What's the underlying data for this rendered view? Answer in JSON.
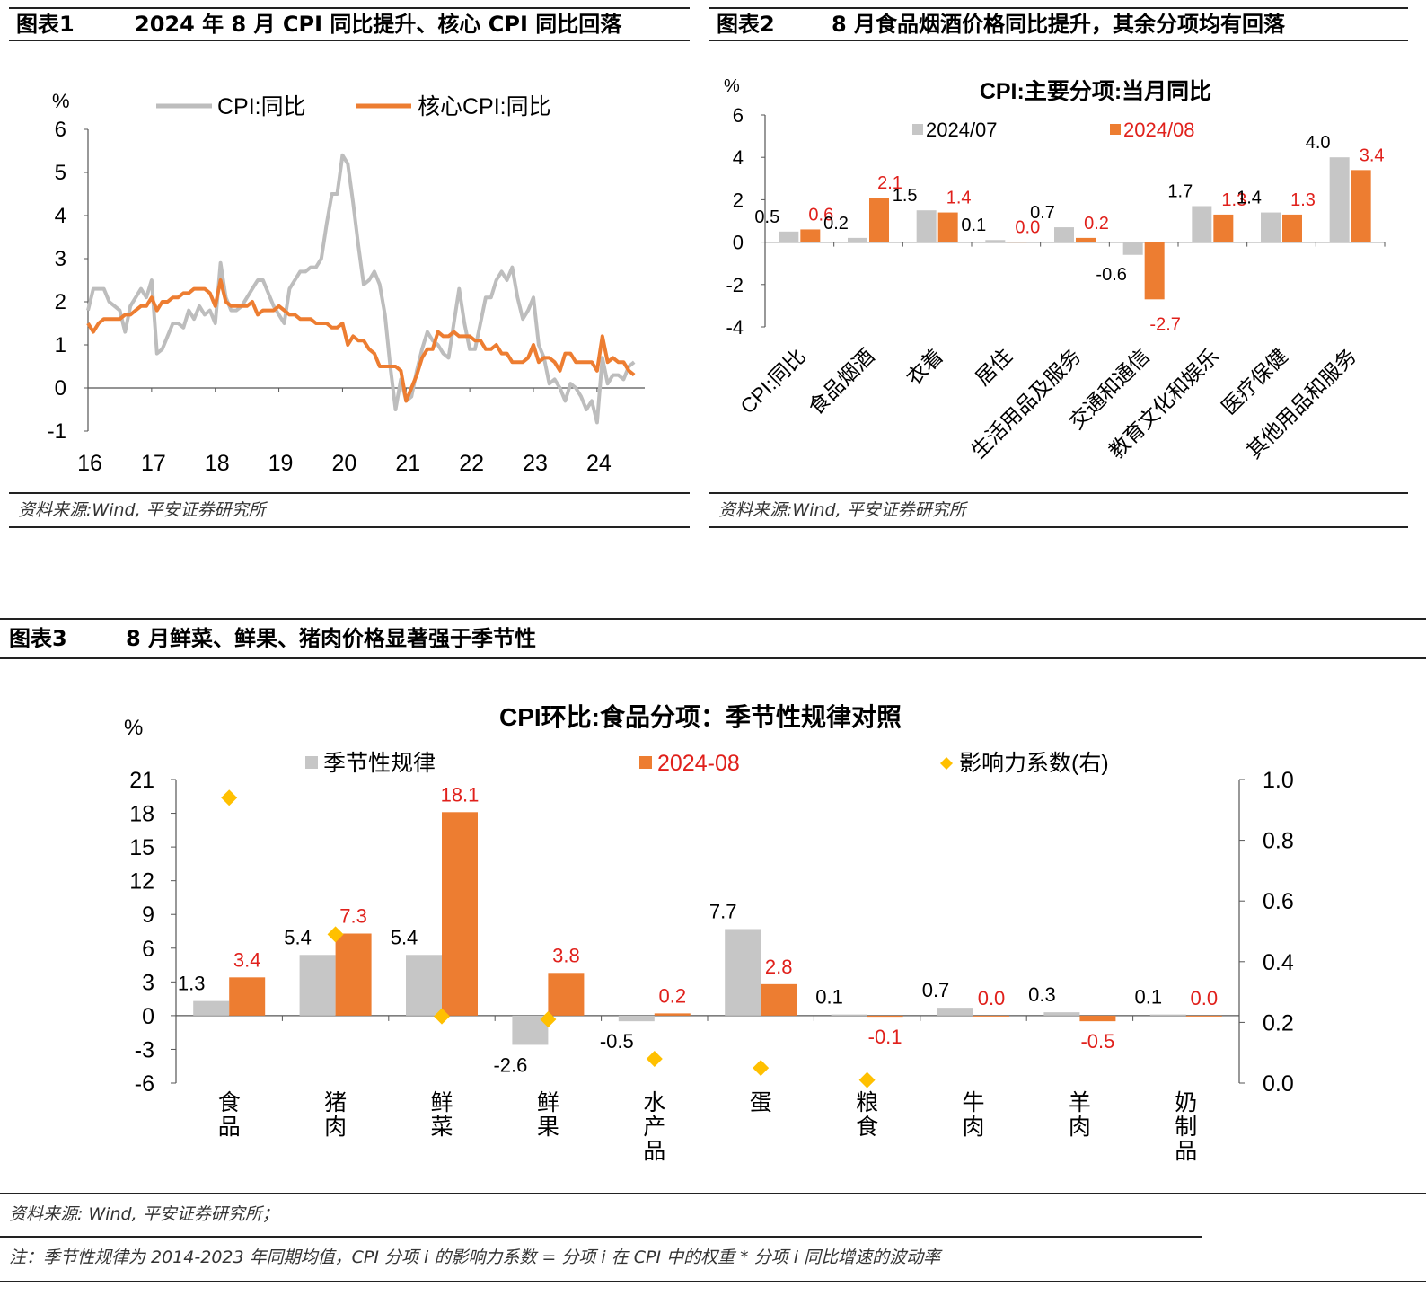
{
  "colors": {
    "grey": "#c6c6c6",
    "orange": "#ed7d31",
    "red": "#e0201b",
    "diamond": "#ffc000",
    "line_grey": "#bdbdbd"
  },
  "panel1": {
    "number": "图表1",
    "title": "2024 年 8 月 CPI 同比提升、核心 CPI 同比回落",
    "source": "资料来源:Wind, 平安证券研究所"
  },
  "panel2": {
    "number": "图表2",
    "title": "8 月食品烟酒价格同比提升，其余分项均有回落",
    "source": "资料来源:Wind, 平安证券研究所"
  },
  "panel3": {
    "number": "图表3",
    "title": "8 月鲜菜、鲜果、猪肉价格显著强于季节性",
    "source": "资料来源: Wind, 平安证券研究所；",
    "note": "注：季节性规律为 2014-2023 年同期均值，CPI 分项 i 的影响力系数 = 分项 i 在 CPI 中的权重 * 分项 i 同比增速的波动率"
  },
  "chart_data": [
    {
      "type": "line",
      "title": "",
      "ylabel": "%",
      "ylim": [
        -1,
        6
      ],
      "yticks": [
        "-1",
        "0",
        "1",
        "2",
        "3",
        "4",
        "5",
        "6"
      ],
      "xticks": [
        "16",
        "17",
        "18",
        "19",
        "20",
        "21",
        "22",
        "23",
        "24"
      ],
      "grid": false,
      "legend": "top",
      "series": [
        {
          "name": "CPI:同比",
          "color": "#bdbdbd",
          "start": "2016-01",
          "values": [
            1.8,
            2.3,
            2.3,
            2.3,
            2.0,
            1.9,
            1.8,
            1.3,
            1.9,
            2.1,
            2.3,
            2.1,
            2.5,
            0.8,
            0.9,
            1.2,
            1.5,
            1.5,
            1.4,
            1.8,
            1.6,
            1.9,
            1.7,
            1.8,
            1.5,
            2.9,
            2.1,
            1.8,
            1.8,
            1.9,
            2.1,
            2.3,
            2.5,
            2.5,
            2.2,
            1.9,
            1.7,
            1.5,
            2.3,
            2.5,
            2.7,
            2.7,
            2.8,
            2.8,
            3.0,
            3.8,
            4.5,
            4.5,
            5.4,
            5.2,
            4.3,
            3.3,
            2.4,
            2.5,
            2.7,
            2.4,
            1.7,
            0.5,
            -0.5,
            0.2,
            -0.3,
            -0.2,
            0.4,
            0.9,
            1.3,
            1.1,
            1.0,
            0.8,
            0.7,
            1.5,
            2.3,
            1.5,
            0.9,
            0.9,
            1.5,
            2.1,
            2.1,
            2.5,
            2.7,
            2.5,
            2.8,
            2.1,
            1.6,
            1.8,
            2.1,
            1.0,
            0.7,
            0.1,
            0.2,
            0.0,
            -0.3,
            0.1,
            0.0,
            -0.2,
            -0.5,
            -0.3,
            -0.8,
            0.7,
            0.1,
            0.3,
            0.3,
            0.2,
            0.5,
            0.6
          ]
        },
        {
          "name": "核心CPI:同比",
          "color": "#ed7d31",
          "start": "2016-01",
          "values": [
            1.5,
            1.3,
            1.5,
            1.6,
            1.6,
            1.6,
            1.6,
            1.7,
            1.7,
            1.8,
            1.9,
            1.9,
            2.1,
            1.8,
            2.0,
            2.0,
            2.1,
            2.1,
            2.2,
            2.2,
            2.3,
            2.3,
            2.3,
            2.2,
            1.9,
            2.5,
            2.0,
            1.9,
            1.9,
            1.9,
            1.9,
            2.0,
            1.7,
            1.8,
            1.8,
            1.8,
            1.9,
            1.8,
            1.7,
            1.7,
            1.6,
            1.6,
            1.6,
            1.5,
            1.5,
            1.5,
            1.4,
            1.4,
            1.5,
            1.0,
            1.2,
            1.1,
            1.1,
            0.9,
            0.8,
            0.5,
            0.5,
            0.5,
            0.5,
            0.4,
            -0.3,
            0.0,
            0.3,
            0.7,
            0.9,
            0.9,
            1.3,
            1.2,
            1.2,
            1.3,
            1.2,
            1.2,
            1.2,
            1.1,
            1.1,
            0.9,
            0.9,
            1.0,
            0.8,
            0.8,
            0.6,
            0.6,
            0.6,
            0.7,
            1.0,
            0.6,
            0.7,
            0.7,
            0.6,
            0.4,
            0.8,
            0.8,
            0.6,
            0.6,
            0.6,
            0.6,
            0.4,
            1.2,
            0.6,
            0.7,
            0.6,
            0.6,
            0.4,
            0.3
          ]
        }
      ]
    },
    {
      "type": "bar",
      "title": "CPI:主要分项:当月同比",
      "ylabel": "%",
      "ylim": [
        -4,
        6
      ],
      "yticks": [
        "6",
        "4",
        "2",
        "0",
        "-2",
        "-4"
      ],
      "legend": "top",
      "categories": [
        "CPI:同比",
        "食品烟酒",
        "衣着",
        "居住",
        "生活用品及服务",
        "交通和通信",
        "教育文化和娱乐",
        "医疗保健",
        "其他用品和服务"
      ],
      "series": [
        {
          "name": "2024/07",
          "color": "#c6c6c6",
          "values": [
            0.5,
            0.2,
            1.5,
            0.1,
            0.7,
            -0.6,
            1.7,
            1.4,
            4.0
          ],
          "labels": [
            "0.5",
            "0.2",
            "1.5",
            "0.1",
            "0.7",
            "-0.6",
            "1.7",
            "1.4",
            "4.0"
          ]
        },
        {
          "name": "2024/08",
          "color": "#ed7d31",
          "values": [
            0.6,
            2.1,
            1.4,
            0.0,
            0.2,
            -2.7,
            1.3,
            1.3,
            3.4
          ],
          "labels": [
            "0.6",
            "2.1",
            "1.4",
            "0.0",
            "0.2",
            "-2.7",
            "1.3",
            "1.3",
            "3.4"
          ]
        }
      ]
    },
    {
      "type": "bar",
      "title": "CPI环比:食品分项：季节性规律对照",
      "ylabel": "%",
      "ylim": [
        -6,
        21
      ],
      "yticks": [
        "21",
        "18",
        "15",
        "12",
        "9",
        "6",
        "3",
        "0",
        "-3",
        "-6"
      ],
      "y2lim": [
        0,
        1.0
      ],
      "y2ticks": [
        "1.0",
        "0.8",
        "0.6",
        "0.4",
        "0.2",
        "0.0"
      ],
      "legend": "top",
      "categories": [
        "食品",
        "猪肉",
        "鲜菜",
        "鲜果",
        "水产品",
        "蛋",
        "粮食",
        "牛肉",
        "羊肉",
        "奶制品"
      ],
      "series": [
        {
          "name": "季节性规律",
          "color": "#c6c6c6",
          "values": [
            1.3,
            5.4,
            5.4,
            -2.6,
            -0.5,
            7.7,
            0.1,
            0.7,
            0.3,
            0.1
          ],
          "labels": [
            "1.3",
            "5.4",
            "5.4",
            "-2.6",
            "-0.5",
            "7.7",
            "0.1",
            "0.7",
            "0.3",
            "0.1"
          ]
        },
        {
          "name": "2024-08",
          "color": "#ed7d31",
          "values": [
            3.4,
            7.3,
            18.1,
            3.8,
            0.2,
            2.8,
            -0.1,
            0.0,
            -0.5,
            0.0
          ],
          "labels": [
            "3.4",
            "7.3",
            "18.1",
            "3.8",
            "0.2",
            "2.8",
            "-0.1",
            "0.0",
            "-0.5",
            "0.0"
          ]
        },
        {
          "name": "影响力系数(右)",
          "color": "#ffc000",
          "type": "scatter",
          "axis": "right",
          "values": [
            0.94,
            0.49,
            0.22,
            0.21,
            0.08,
            0.05,
            0.01,
            null,
            null,
            null
          ]
        }
      ]
    }
  ]
}
